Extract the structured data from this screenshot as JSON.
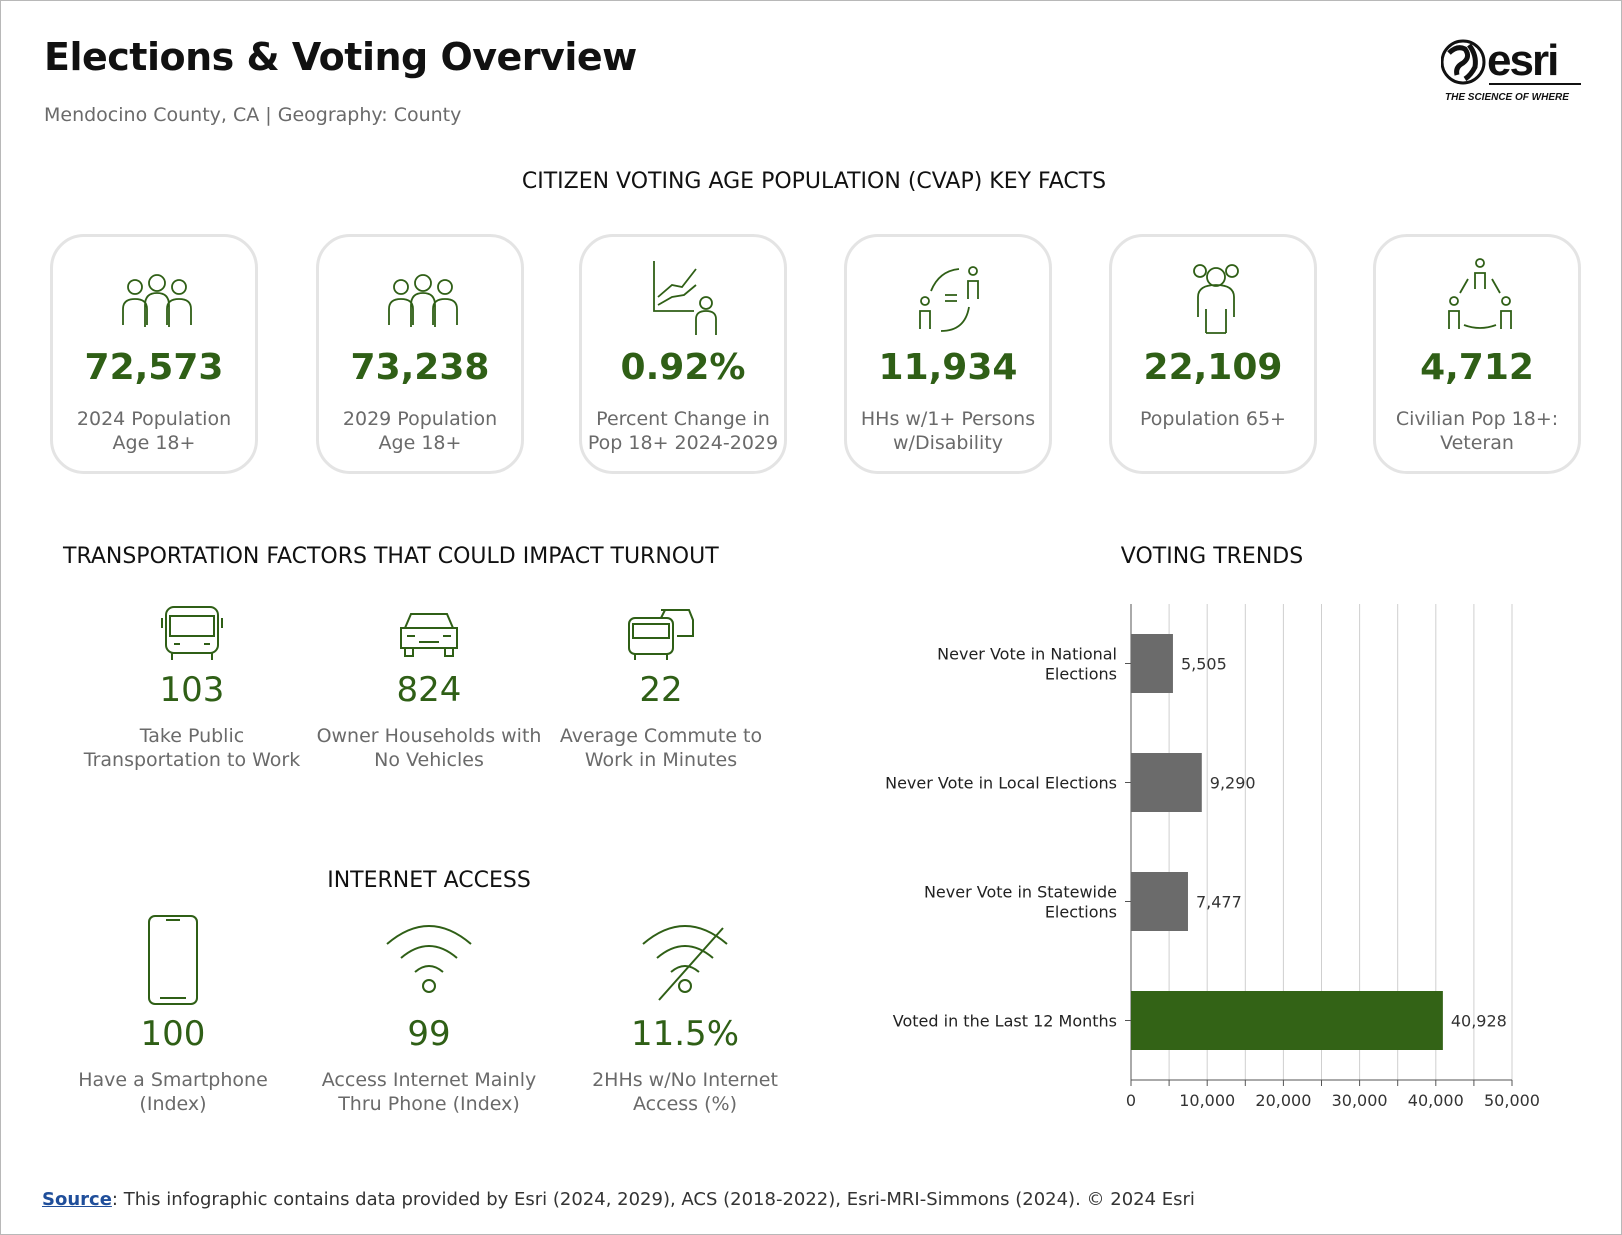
{
  "header": {
    "title": "Elections & Voting Overview",
    "subtitle": "Mendocino County, CA | Geography: County",
    "logo_text": "esri",
    "logo_tagline": "THE SCIENCE OF WHERE"
  },
  "cvap": {
    "heading": "CITIZEN VOTING AGE POPULATION (CVAP) KEY FACTS",
    "cards": [
      {
        "icon": "people-group-icon",
        "value": "72,573",
        "label": "2024 Population Age 18+"
      },
      {
        "icon": "people-group-icon",
        "value": "73,238",
        "label": "2029 Population Age 18+"
      },
      {
        "icon": "growth-chart-person-icon",
        "value": "0.92%",
        "label": "Percent Change in Pop 18+ 2024-2029"
      },
      {
        "icon": "people-equal-icon",
        "value": "11,934",
        "label": "HHs w/1+ Persons w/Disability"
      },
      {
        "icon": "elderly-person-icon",
        "value": "22,109",
        "label": "Population 65+"
      },
      {
        "icon": "people-network-icon",
        "value": "4,712",
        "label": "Civilian Pop 18+: Veteran"
      }
    ]
  },
  "transport": {
    "heading": "TRANSPORTATION FACTORS THAT COULD IMPACT TURNOUT",
    "items": [
      {
        "icon": "bus-icon",
        "value": "103",
        "label": "Take Public Transportation to Work"
      },
      {
        "icon": "car-icon",
        "value": "824",
        "label": "Owner Households with No Vehicles"
      },
      {
        "icon": "traffic-icon",
        "value": "22",
        "label": "Average Commute to Work in Minutes"
      }
    ]
  },
  "internet": {
    "heading": "INTERNET ACCESS",
    "items": [
      {
        "icon": "smartphone-icon",
        "value": "100",
        "label": "Have a Smartphone (Index)"
      },
      {
        "icon": "wifi-icon",
        "value": "99",
        "label": "Access Internet Mainly Thru Phone (Index)"
      },
      {
        "icon": "no-wifi-icon",
        "value": "11.5%",
        "label": "2HHs w/No Internet Access (%)"
      }
    ]
  },
  "voting": {
    "heading": "VOTING TRENDS"
  },
  "chart_data": {
    "type": "bar",
    "orientation": "horizontal",
    "categories": [
      "Never Vote in National Elections",
      "Never Vote in Local Elections",
      "Never Vote in Statewide Elections",
      "Voted in the Last 12 Months"
    ],
    "values": [
      5505,
      9290,
      7477,
      40928
    ],
    "data_labels": [
      "5,505",
      "9,290",
      "7,477",
      "40,928"
    ],
    "colors": [
      "#6b6b6b",
      "#6b6b6b",
      "#6b6b6b",
      "#336316"
    ],
    "xlim": [
      0,
      50000
    ],
    "ticks": [
      0,
      10000,
      20000,
      30000,
      40000,
      50000
    ],
    "tick_labels": [
      "0",
      "10,000",
      "20,000",
      "30,000",
      "40,000",
      "50,000"
    ],
    "grid": true
  },
  "footer": {
    "source_link": "Source",
    "source_text": ": This infographic contains data provided by Esri (2024, 2029), ACS (2018-2022), Esri-MRI-Simmons (2024). © 2024 Esri"
  },
  "colors": {
    "accent": "#2f5f16",
    "bar_gray": "#6b6b6b",
    "bar_green": "#336316"
  }
}
